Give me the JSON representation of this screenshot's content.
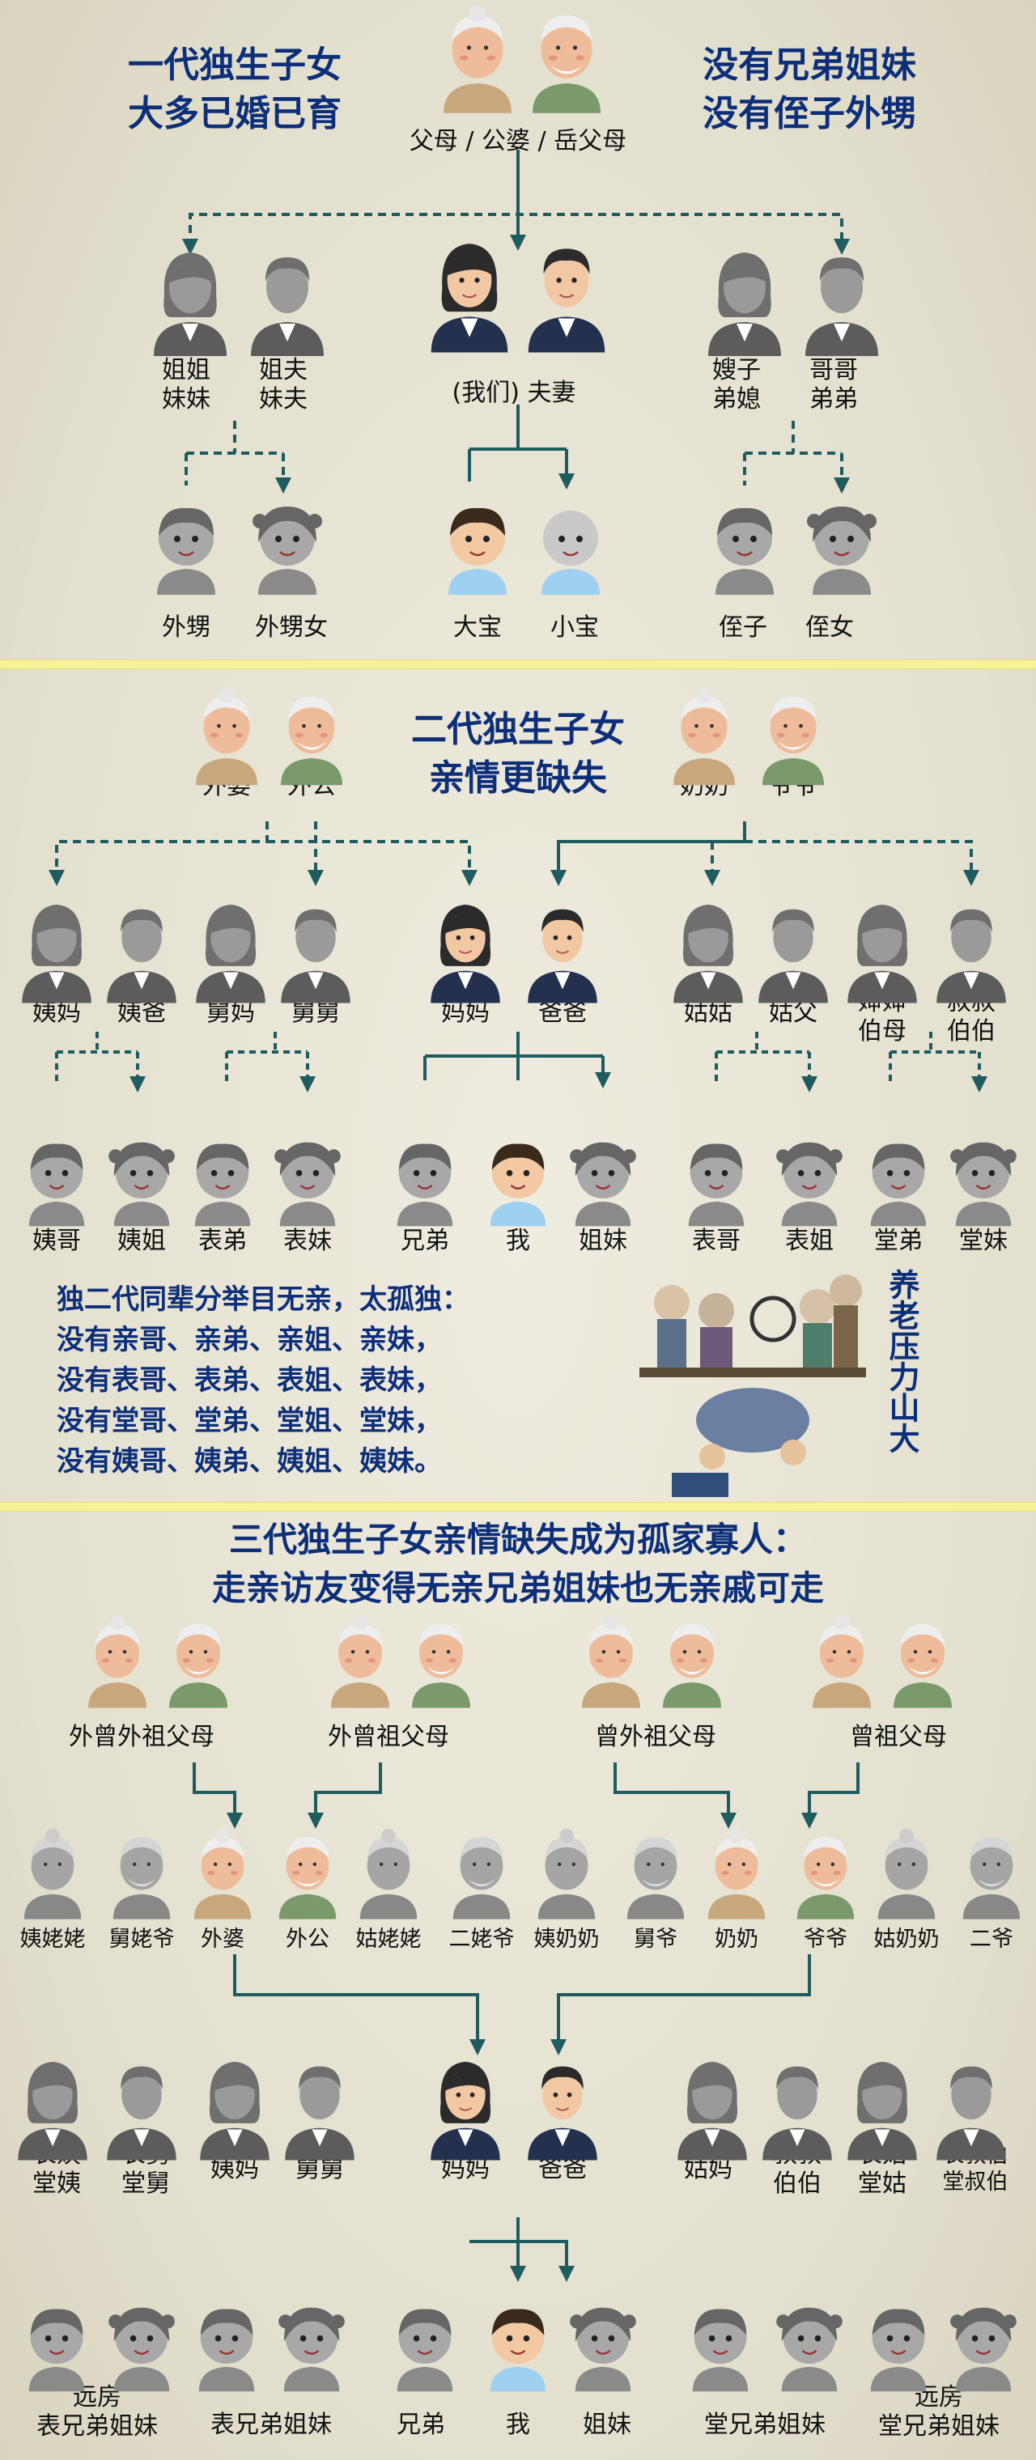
{
  "section1": {
    "title_left_line1": "一代独生子女",
    "title_left_line2": "大多已婚已育",
    "title_right_line1": "没有兄弟姐妹",
    "title_right_line2": "没有侄子外甥",
    "parents_label": "父母 / 公婆 / 岳父母",
    "sister_label": "姐姐\n妹妹",
    "brother_in_law_label": "姐夫\n妹夫",
    "couple_label": "(我们) 夫妻",
    "sister_in_law_label": "嫂子\n弟媳",
    "brother_label": "哥哥\n弟弟",
    "nephew_label": "外甥",
    "niece_label": "外甥女",
    "first_child_label": "大宝",
    "second_child_label": "小宝",
    "brothers_son_label": "侄子",
    "brothers_daughter_label": "侄女"
  },
  "section2": {
    "title_line1": "二代独生子女",
    "title_line2": "亲情更缺失",
    "maternal_grandma": "外婆",
    "maternal_grandpa": "外公",
    "paternal_grandma": "奶奶",
    "paternal_grandpa": "爷爷",
    "aunt_maternal": "姨妈",
    "aunt_maternal_husband": "姨爸",
    "uncle_maternal_wife": "舅妈",
    "uncle_maternal": "舅舅",
    "mom": "妈妈",
    "dad": "爸爸",
    "aunt_paternal": "姑姑",
    "aunt_paternal_husband": "姑父",
    "uncle_paternal_wife": "婶婶\n伯母",
    "uncle_paternal": "叔叔\n伯伯",
    "cousin_elder_brother_1": "姨哥",
    "cousin_elder_sister_1": "姨姐",
    "cousin_younger_brother_1": "表弟",
    "cousin_younger_sister_1": "表妹",
    "sibling_brother": "兄弟",
    "me": "我",
    "sibling_sister": "姐妹",
    "cousin_elder_brother_2": "表哥",
    "cousin_elder_sister_2": "表姐",
    "tang_younger_brother": "堂弟",
    "tang_younger_sister": "堂妹",
    "desc_lines": [
      "独二代同辈分举目无亲，太孤独：",
      "没有亲哥、亲弟、亲姐、亲妹，",
      "没有表哥、表弟、表姐、表妹，",
      "没有堂哥、堂弟、堂姐、堂妹，",
      "没有姨哥、姨弟、姨姐、姨妹。"
    ],
    "pressure_text": "养老压力山大"
  },
  "section3": {
    "title_line1": "三代独生子女亲情缺失成为孤家寡人：",
    "title_line2": "走亲访友变得无亲兄弟姐妹也无亲戚可走",
    "gg_group_1": "外曾外祖父母",
    "gg_group_2": "外曾祖父母",
    "gg_group_3": "曾外祖父母",
    "gg_group_4": "曾祖父母",
    "gen2": [
      "姨姥姥",
      "舅姥爷",
      "外婆",
      "外公",
      "姑姥姥",
      "二姥爷",
      "姨奶奶",
      "舅爷",
      "奶奶",
      "爷爷",
      "姑奶奶",
      "二爷"
    ],
    "gen3_left": [
      "表姨\n堂姨",
      "表舅\n堂舅",
      "姨妈",
      "舅舅"
    ],
    "mom": "妈妈",
    "dad": "爸爸",
    "gen3_right": [
      "姑妈",
      "叔叔\n伯伯",
      "表姑\n堂姑",
      "表叔伯\n堂叔伯"
    ],
    "gen4": [
      "远房\n表兄弟姐妹",
      "表兄弟姐妹",
      "兄弟",
      "我",
      "姐妹",
      "堂兄弟姐妹",
      "远房\n堂兄弟姐妹"
    ]
  },
  "colors": {
    "title_blue": "#0d2f7a",
    "connector_teal": "#1e5c5f",
    "divider_yellow": "#f7f29a",
    "background": "#e9e6d6"
  }
}
